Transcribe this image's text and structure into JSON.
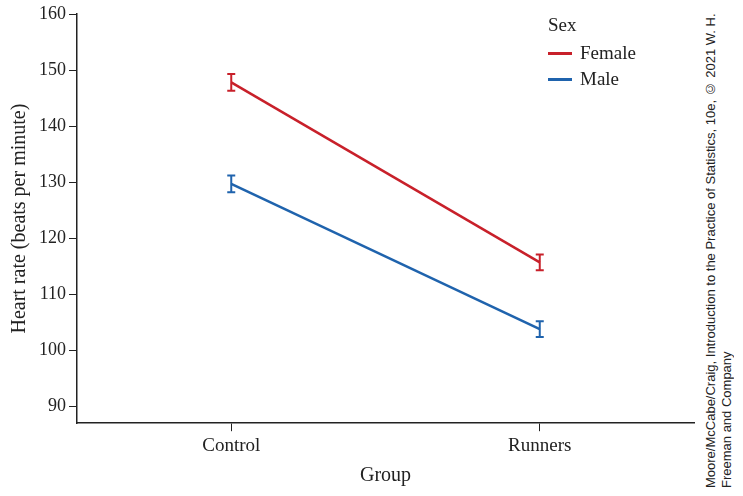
{
  "chart_data": {
    "type": "line",
    "x_label": "Group",
    "y_label": "Heart rate (beats per minute)",
    "categories": [
      "Control",
      "Runners"
    ],
    "series": [
      {
        "name": "Female",
        "color": "#c8202a",
        "values": [
          147.8,
          115.7
        ],
        "errors": [
          1.5,
          1.4
        ]
      },
      {
        "name": "Male",
        "color": "#1f63ad",
        "values": [
          129.7,
          103.8
        ],
        "errors": [
          1.5,
          1.4
        ]
      }
    ],
    "ylim": [
      87,
      160
    ],
    "yticks": [
      90,
      100,
      110,
      120,
      130,
      140,
      150,
      160
    ],
    "grid": false,
    "legend": "upper right",
    "legend_title": "Sex",
    "source": "Moore/McCabe/Craig, Introduction to the Practice of Statistics, 10e, © 2021 W. H. Freeman and Company"
  }
}
